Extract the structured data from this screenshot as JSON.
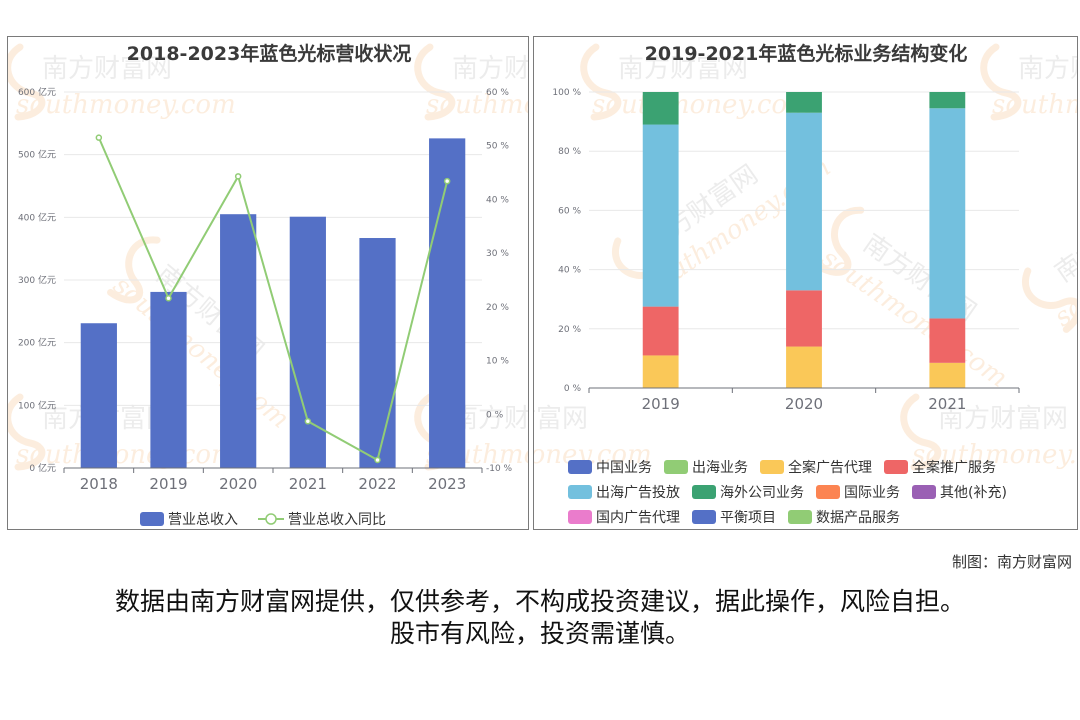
{
  "chart_data": [
    {
      "type": "bar",
      "title": "2018-2023年蓝色光标营收状况",
      "categories": [
        "2018",
        "2019",
        "2020",
        "2021",
        "2022",
        "2023"
      ],
      "y_left": {
        "range": [
          0,
          600
        ],
        "ticks": [
          0,
          100,
          200,
          300,
          400,
          500,
          600
        ],
        "unit": "亿元"
      },
      "y_right": {
        "range": [
          -10,
          60
        ],
        "ticks": [
          -10,
          0,
          10,
          20,
          30,
          40,
          50,
          60
        ],
        "unit": "%"
      },
      "series": [
        {
          "name": "营业总收入",
          "kind": "bar",
          "axis": "left",
          "color": "#5470c6",
          "values": [
            231,
            281,
            405,
            401,
            367,
            526
          ]
        },
        {
          "name": "营业总收入同比",
          "kind": "line",
          "axis": "right",
          "color": "#91cc75",
          "values": [
            51.5,
            21.6,
            44.3,
            -1.3,
            -8.5,
            43.4
          ]
        }
      ],
      "legend": "bottom",
      "grid": true
    },
    {
      "type": "bar",
      "stacked": true,
      "title": "2019-2021年蓝色光标业务结构变化",
      "categories": [
        "2019",
        "2020",
        "2021"
      ],
      "y": {
        "range": [
          0,
          100
        ],
        "ticks": [
          0,
          20,
          40,
          60,
          80,
          100
        ],
        "unit": "%"
      },
      "series": [
        {
          "name": "中国业务",
          "color": "#5470c6",
          "values": [
            0,
            0,
            0
          ]
        },
        {
          "name": "出海业务",
          "color": "#91cc75",
          "values": [
            0,
            0,
            0
          ]
        },
        {
          "name": "全案广告代理",
          "color": "#fac858",
          "values": [
            11,
            14,
            8.5
          ]
        },
        {
          "name": "全案推广服务",
          "color": "#ee6666",
          "values": [
            16.5,
            19,
            15
          ]
        },
        {
          "name": "出海广告投放",
          "color": "#73c0de",
          "values": [
            61.5,
            60,
            71
          ]
        },
        {
          "name": "海外公司业务",
          "color": "#3ba272",
          "values": [
            11,
            7,
            5.5
          ]
        },
        {
          "name": "国际业务",
          "color": "#fc8452",
          "values": [
            0,
            0,
            0
          ]
        },
        {
          "name": "其他(补充)",
          "color": "#9a60b4",
          "values": [
            0,
            0,
            0
          ]
        },
        {
          "name": "国内广告代理",
          "color": "#ea7ccc",
          "values": [
            0,
            0,
            0
          ]
        },
        {
          "name": "平衡项目",
          "color": "#5470c6",
          "values": [
            0,
            0,
            0
          ]
        },
        {
          "name": "数据产品服务",
          "color": "#91cc75",
          "values": [
            0,
            0,
            0
          ]
        }
      ],
      "legend": "bottom",
      "grid": true
    }
  ],
  "watermark": {
    "brand": "南方财富网",
    "url": "southmoney.com"
  },
  "footer": {
    "credit": "制图：南方财富网",
    "disclaimer_line1": "数据由南方财富网提供，仅供参考，不构成投资建议，据此操作，风险自担。",
    "disclaimer_line2": "股市有风险，投资需谨慎。"
  }
}
